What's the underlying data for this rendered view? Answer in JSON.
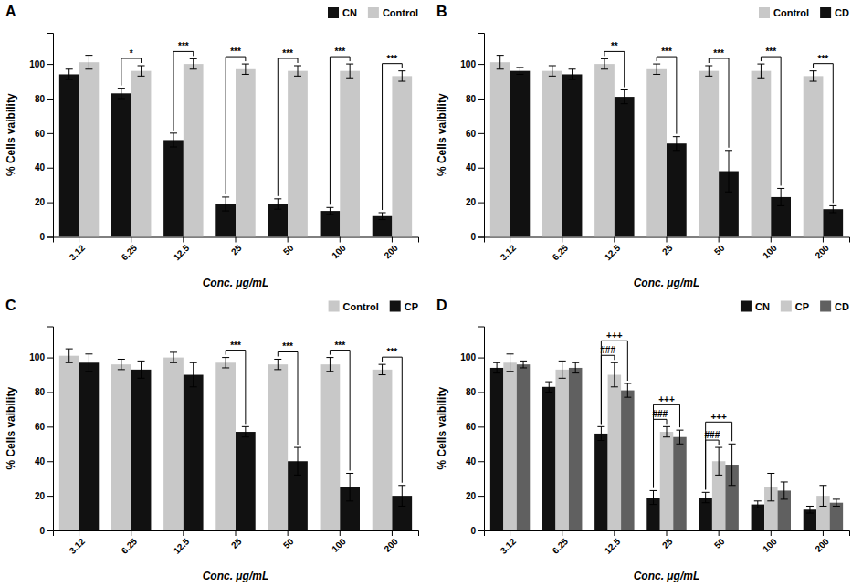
{
  "chart_data": [
    {
      "type": "bar",
      "title": "A",
      "categories": [
        "3.12",
        "6.25",
        "12.5",
        "25",
        "50",
        "100",
        "200"
      ],
      "series": [
        {
          "name": "CN",
          "color": "#111111",
          "values": [
            94,
            83,
            56,
            19,
            19,
            15,
            12
          ],
          "errors": [
            3,
            3,
            4,
            4,
            3,
            2,
            2
          ]
        },
        {
          "name": "Control",
          "color": "#c8c8c8",
          "values": [
            101,
            96,
            100,
            97,
            96,
            96,
            93
          ],
          "errors": [
            4,
            3,
            3,
            3,
            3,
            4,
            3
          ]
        }
      ],
      "annotations": [
        {
          "text": "*",
          "category": "6.25",
          "series": [
            "CN",
            "Control"
          ]
        },
        {
          "text": "***",
          "category": "12.5",
          "series": [
            "CN",
            "Control"
          ]
        },
        {
          "text": "***",
          "category": "25",
          "series": [
            "CN",
            "Control"
          ]
        },
        {
          "text": "***",
          "category": "50",
          "series": [
            "CN",
            "Control"
          ]
        },
        {
          "text": "***",
          "category": "100",
          "series": [
            "CN",
            "Control"
          ]
        },
        {
          "text": "***",
          "category": "200",
          "series": [
            "CN",
            "Control"
          ]
        }
      ],
      "xlabel": "Conc. μg/mL",
      "ylabel": "% Cells vaibility",
      "ylim": [
        0,
        118
      ],
      "yticks": [
        0,
        20,
        40,
        60,
        80,
        100
      ],
      "grid": false,
      "legend": "upper right"
    },
    {
      "type": "bar",
      "title": "B",
      "categories": [
        "3.12",
        "6.25",
        "12.5",
        "25",
        "50",
        "100",
        "200"
      ],
      "series": [
        {
          "name": "Control",
          "color": "#c8c8c8",
          "values": [
            101,
            96,
            100,
            97,
            96,
            96,
            93
          ],
          "errors": [
            4,
            3,
            3,
            3,
            3,
            4,
            3
          ]
        },
        {
          "name": "CD",
          "color": "#111111",
          "values": [
            96,
            94,
            81,
            54,
            38,
            23,
            16
          ],
          "errors": [
            2,
            3,
            4,
            4,
            12,
            5,
            2
          ]
        }
      ],
      "annotations": [
        {
          "text": "**",
          "category": "12.5",
          "series": [
            "Control",
            "CD"
          ]
        },
        {
          "text": "***",
          "category": "25",
          "series": [
            "Control",
            "CD"
          ]
        },
        {
          "text": "***",
          "category": "50",
          "series": [
            "Control",
            "CD"
          ]
        },
        {
          "text": "***",
          "category": "100",
          "series": [
            "Control",
            "CD"
          ]
        },
        {
          "text": "***",
          "category": "200",
          "series": [
            "Control",
            "CD"
          ]
        }
      ],
      "xlabel": "Conc. μg/mL",
      "ylabel": "% Cells vaibility",
      "ylim": [
        0,
        118
      ],
      "yticks": [
        0,
        20,
        40,
        60,
        80,
        100
      ],
      "grid": false,
      "legend": "upper right"
    },
    {
      "type": "bar",
      "title": "C",
      "categories": [
        "3.12",
        "6.25",
        "12.5",
        "25",
        "50",
        "100",
        "200"
      ],
      "series": [
        {
          "name": "Control",
          "color": "#c8c8c8",
          "values": [
            101,
            96,
            100,
            97,
            96,
            96,
            93
          ],
          "errors": [
            4,
            3,
            3,
            3,
            3,
            4,
            3
          ]
        },
        {
          "name": "CP",
          "color": "#111111",
          "values": [
            97,
            93,
            90,
            57,
            40,
            25,
            20
          ],
          "errors": [
            5,
            5,
            7,
            3,
            8,
            8,
            6
          ]
        }
      ],
      "annotations": [
        {
          "text": "***",
          "category": "25",
          "series": [
            "Control",
            "CP"
          ]
        },
        {
          "text": "***",
          "category": "50",
          "series": [
            "Control",
            "CP"
          ]
        },
        {
          "text": "***",
          "category": "100",
          "series": [
            "Control",
            "CP"
          ]
        },
        {
          "text": "***",
          "category": "200",
          "series": [
            "Control",
            "CP"
          ]
        }
      ],
      "xlabel": "Conc. μg/mL",
      "ylabel": "% Cells vaibility",
      "ylim": [
        0,
        118
      ],
      "yticks": [
        0,
        20,
        40,
        60,
        80,
        100
      ],
      "grid": false,
      "legend": "upper right"
    },
    {
      "type": "bar",
      "title": "D",
      "categories": [
        "3.12",
        "6.25",
        "12.5",
        "25",
        "50",
        "100",
        "200"
      ],
      "series": [
        {
          "name": "CN",
          "color": "#111111",
          "values": [
            94,
            83,
            56,
            19,
            19,
            15,
            12
          ],
          "errors": [
            3,
            3,
            4,
            4,
            3,
            2,
            2
          ]
        },
        {
          "name": "CP",
          "color": "#c8c8c8",
          "values": [
            97,
            93,
            90,
            57,
            40,
            25,
            20
          ],
          "errors": [
            5,
            5,
            7,
            3,
            8,
            8,
            6
          ]
        },
        {
          "name": "CD",
          "color": "#606060",
          "values": [
            96,
            94,
            81,
            54,
            38,
            23,
            16
          ],
          "errors": [
            2,
            3,
            4,
            4,
            12,
            5,
            2
          ]
        }
      ],
      "annotations": [
        {
          "text": "###",
          "category": "12.5",
          "series": [
            "CN",
            "CP"
          ]
        },
        {
          "text": "+++",
          "category": "12.5",
          "series": [
            "CN",
            "CD"
          ]
        },
        {
          "text": "###",
          "category": "25",
          "series": [
            "CN",
            "CP"
          ]
        },
        {
          "text": "+++",
          "category": "25",
          "series": [
            "CN",
            "CD"
          ]
        },
        {
          "text": "###",
          "category": "50",
          "series": [
            "CN",
            "CP"
          ]
        },
        {
          "text": "+++",
          "category": "50",
          "series": [
            "CN",
            "CD"
          ]
        }
      ],
      "xlabel": "Conc. μg/mL",
      "ylabel": "% Cells vaibility",
      "ylim": [
        0,
        118
      ],
      "yticks": [
        0,
        20,
        40,
        60,
        80,
        100
      ],
      "grid": false,
      "legend": "upper right"
    }
  ]
}
